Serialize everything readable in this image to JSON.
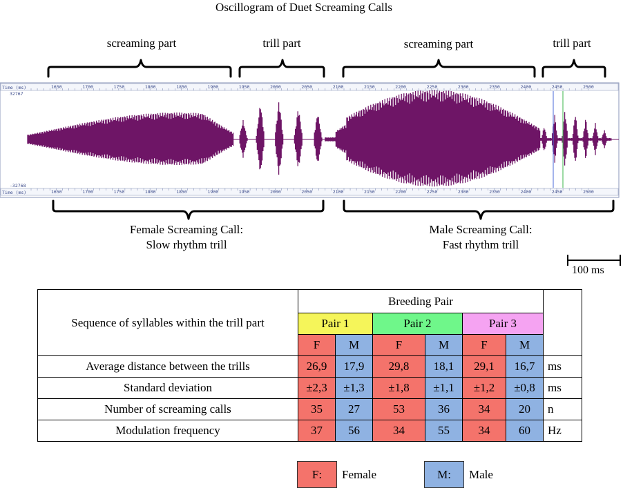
{
  "title": "Oscillogram of Duet Screaming Calls",
  "segments": [
    {
      "label": "screaming part"
    },
    {
      "label": "trill part"
    },
    {
      "label": "screaming part"
    },
    {
      "label": "trill part"
    }
  ],
  "calls": {
    "female": {
      "line1": "Female Screaming Call:",
      "line2": "Slow rhythm trill"
    },
    "male": {
      "line1": "Male Screaming Call:",
      "line2": "Fast rhythm trill"
    }
  },
  "scale_bar": {
    "label": "100 ms"
  },
  "oscillogram": {
    "axis_label": "Time (ms)",
    "amp_max": "32767",
    "amp_min": "-32768",
    "ticks": [
      "1650",
      "1700",
      "1750",
      "1800",
      "1850",
      "1900",
      "1950",
      "2000",
      "2050",
      "2100",
      "2150",
      "2200",
      "2250",
      "2300",
      "2350",
      "2400",
      "2450",
      "2500"
    ],
    "waveform_color": "#6e1566"
  },
  "table": {
    "header": "Sequence of syllables within the trill part",
    "group_header": "Breeding Pair",
    "pairs": [
      "Pair 1",
      "Pair 2",
      "Pair 3"
    ],
    "sexes": [
      "F",
      "M",
      "F",
      "M",
      "F",
      "M"
    ],
    "rows": [
      {
        "label": "Average distance between the trills",
        "values": [
          "26,9",
          "17,9",
          "29,8",
          "18,1",
          "29,1",
          "16,7"
        ],
        "unit": "ms"
      },
      {
        "label": "Standard deviation",
        "values": [
          "±2,3",
          "±1,3",
          "±1,8",
          "±1,1",
          "±1,2",
          "±0,8"
        ],
        "unit": "ms"
      },
      {
        "label": "Number of screaming calls",
        "values": [
          "35",
          "27",
          "53",
          "36",
          "34",
          "20"
        ],
        "unit": "n"
      },
      {
        "label": "Modulation frequency",
        "values": [
          "37",
          "56",
          "34",
          "55",
          "34",
          "60"
        ],
        "unit": "Hz"
      }
    ]
  },
  "legend": {
    "female_key": "F:",
    "female_label": "Female",
    "male_key": "M:",
    "male_label": "Male"
  },
  "colors": {
    "female": "#f4736b",
    "male": "#8fb2e2",
    "pair1": "#f5f55a",
    "pair2": "#6ff78a",
    "pair3": "#f5a3f2"
  }
}
